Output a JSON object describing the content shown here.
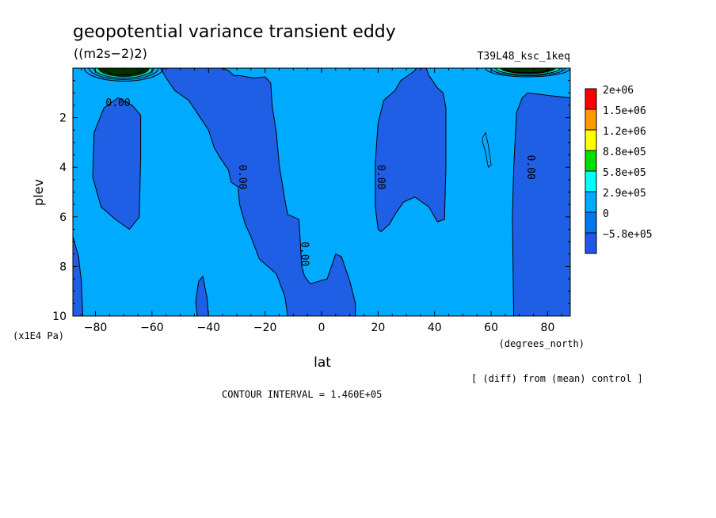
{
  "chart_data": {
    "type": "heatmap",
    "title": "geopotential variance transient eddy",
    "subtitle": "((m2s−2)2)",
    "run_label": "T39L48_ksc_1keq",
    "xlabel": "lat",
    "x_units": "(degrees_north)",
    "ylabel": "plev",
    "y_units": "(x1E4 Pa)",
    "xlim": [
      -88,
      88
    ],
    "ylim": [
      10,
      0
    ],
    "x_ticks": [
      -80,
      -60,
      -40,
      -20,
      0,
      20,
      40,
      60,
      80
    ],
    "x_tick_labels": [
      "−80",
      "−60",
      "−40",
      "−20",
      "0",
      "20",
      "40",
      "60",
      "80"
    ],
    "y_ticks": [
      2,
      4,
      6,
      8,
      10
    ],
    "y_tick_labels": [
      "2",
      "4",
      "6",
      "8",
      "10"
    ],
    "contour_interval_text": "CONTOUR INTERVAL = 1.460E+05",
    "note": "[ (diff) from (mean) control ]",
    "contour_labels": [
      {
        "text": "0.00",
        "lat": -72,
        "plev": 1.4,
        "rotate": 0
      },
      {
        "text": "0.00",
        "lat": -28,
        "plev": 4.4,
        "rotate": 90
      },
      {
        "text": "0.00",
        "lat": -6,
        "plev": 7.5,
        "rotate": 90
      },
      {
        "text": "0.00",
        "lat": 21,
        "plev": 4.4,
        "rotate": 90
      },
      {
        "text": "0.00",
        "lat": 74,
        "plev": 4.0,
        "rotate": 90
      }
    ],
    "colorbar": {
      "levels": [
        "2e+06",
        "1.5e+06",
        "1.2e+06",
        "8.8e+05",
        "5.8e+05",
        "2.9e+05",
        "0",
        "−5.8e+05"
      ],
      "colors": [
        "#ff0000",
        "#ff9900",
        "#ffff00",
        "#00dd00",
        "#00ffff",
        "#00aaff",
        "#0077ee",
        "#2255ee"
      ]
    },
    "fill_colors": {
      "positive": "#00aaff",
      "negative": "#1f5fe6",
      "high": "#00e0a0"
    },
    "regions_negative": [
      {
        "name": "south-polar-lower-strip",
        "points": [
          [
            -88,
            6.8
          ],
          [
            -86,
            7.6
          ],
          [
            -85,
            8.6
          ],
          [
            -84.5,
            10
          ],
          [
            -88,
            10
          ]
        ]
      },
      {
        "name": "southern-mid-cell",
        "points": [
          [
            -77,
            1.6
          ],
          [
            -72,
            1.2
          ],
          [
            -67,
            1.5
          ],
          [
            -64,
            1.9
          ],
          [
            -64,
            3.5
          ],
          [
            -64.5,
            6.0
          ],
          [
            -68,
            6.5
          ],
          [
            -73,
            6.1
          ],
          [
            -78,
            5.6
          ],
          [
            -81,
            4.4
          ],
          [
            -80.5,
            2.6
          ]
        ]
      },
      {
        "name": "tropical-tongue",
        "points": [
          [
            -57,
            0
          ],
          [
            -50,
            0
          ],
          [
            -40,
            0
          ],
          [
            -35,
            0
          ],
          [
            -33,
            0.1
          ],
          [
            -31,
            0.3
          ],
          [
            -29,
            0.3
          ],
          [
            -24,
            0.4
          ],
          [
            -20,
            0.35
          ],
          [
            -18,
            0.6
          ],
          [
            -17.5,
            1.5
          ],
          [
            -16,
            2.6
          ],
          [
            -15,
            3.9
          ],
          [
            -13,
            5.3
          ],
          [
            -12,
            5.9
          ],
          [
            -8,
            6.1
          ],
          [
            -7,
            8.0
          ],
          [
            -6,
            8.4
          ],
          [
            -4,
            8.7
          ],
          [
            -1,
            8.6
          ],
          [
            2,
            8.5
          ],
          [
            5,
            7.5
          ],
          [
            7,
            7.6
          ],
          [
            10,
            8.6
          ],
          [
            12,
            9.5
          ],
          [
            12,
            10
          ],
          [
            -12,
            10
          ],
          [
            -13,
            9.2
          ],
          [
            -16,
            8.3
          ],
          [
            -19,
            8.0
          ],
          [
            -22,
            7.7
          ],
          [
            -25,
            6.8
          ],
          [
            -27,
            6.3
          ],
          [
            -29,
            5.5
          ],
          [
            -29.5,
            4.8
          ],
          [
            -32,
            4.6
          ],
          [
            -33,
            4.1
          ],
          [
            -36,
            3.6
          ],
          [
            -38,
            3.2
          ],
          [
            -40,
            2.5
          ],
          [
            -47,
            1.3
          ],
          [
            -52,
            0.9
          ],
          [
            -55,
            0.4
          ]
        ]
      },
      {
        "name": "south-surface-blob",
        "points": [
          [
            -44,
            10
          ],
          [
            -44.5,
            9.4
          ],
          [
            -43.5,
            8.6
          ],
          [
            -42,
            8.4
          ],
          [
            -40.5,
            9.3
          ],
          [
            -40,
            10
          ]
        ]
      },
      {
        "name": "northern-mid-cell",
        "points": [
          [
            20,
            6.5
          ],
          [
            19,
            5.6
          ],
          [
            19,
            3.8
          ],
          [
            20,
            2.2
          ],
          [
            22,
            1.3
          ],
          [
            26,
            0.9
          ],
          [
            28,
            0.5
          ],
          [
            30,
            0.35
          ],
          [
            33,
            0.1
          ],
          [
            33.5,
            0
          ],
          [
            37,
            0
          ],
          [
            38,
            0.3
          ],
          [
            41,
            0.8
          ],
          [
            43,
            1.0
          ],
          [
            44,
            1.6
          ],
          [
            44,
            4.0
          ],
          [
            43.5,
            6.1
          ],
          [
            41,
            6.2
          ],
          [
            38,
            5.6
          ],
          [
            33,
            5.2
          ],
          [
            29,
            5.4
          ],
          [
            26,
            5.9
          ],
          [
            24,
            6.3
          ],
          [
            21,
            6.6
          ]
        ]
      },
      {
        "name": "north-polar-cell",
        "points": [
          [
            71,
            1.2
          ],
          [
            73,
            1.0
          ],
          [
            80,
            1.1
          ],
          [
            88,
            1.2
          ],
          [
            88,
            10
          ],
          [
            68,
            10
          ],
          [
            67.5,
            6.0
          ],
          [
            68,
            4.0
          ],
          [
            69,
            1.8
          ]
        ]
      }
    ],
    "small_closed_contour": [
      [
        58,
        2.6
      ],
      [
        59,
        3.1
      ],
      [
        60,
        3.9
      ],
      [
        59,
        4.0
      ],
      [
        58,
        3.4
      ],
      [
        57,
        3.0
      ],
      [
        57,
        2.8
      ]
    ],
    "polar_high_cores": [
      {
        "lat_min": -84,
        "lat_max": -56,
        "plev_max": 0.55
      },
      {
        "lat_min": 58,
        "lat_max": 88,
        "plev_max": 0.35
      }
    ]
  }
}
